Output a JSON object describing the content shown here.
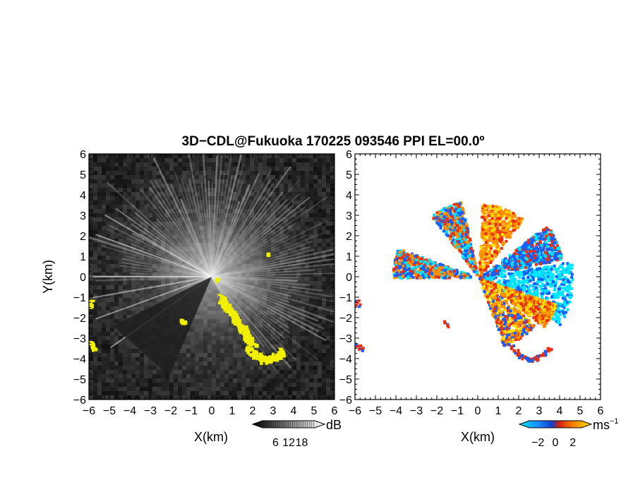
{
  "title": "3D−CDL@Fukuoka 170225 093546 PPI EL=00.0º",
  "chart_data": [
    {
      "type": "heatmap",
      "title": "3D−CDL@Fukuoka 170225 093546 PPI EL=00.0º",
      "quantity": "signal-to-noise ratio",
      "xlabel": "X(km)",
      "ylabel": "Y(km)",
      "xlim": [
        -6,
        6
      ],
      "ylim": [
        -6,
        6
      ],
      "xticks": [
        -6,
        -5,
        -4,
        -3,
        -2,
        -1,
        0,
        1,
        2,
        3,
        4,
        5,
        6
      ],
      "yticks": [
        -6,
        -5,
        -4,
        -3,
        -2,
        -1,
        0,
        1,
        2,
        3,
        4,
        5,
        6
      ],
      "xtick_labels": [
        "−6",
        "−5",
        "−4",
        "−3",
        "−2",
        "−1",
        "0",
        "1",
        "2",
        "3",
        "4",
        "5",
        "6"
      ],
      "ytick_labels": [
        "−6",
        "−5",
        "−4",
        "−3",
        "−2",
        "−1",
        "0",
        "1",
        "2",
        "3",
        "4",
        "5",
        "6"
      ],
      "colorbar": {
        "ticks": [
          6,
          12,
          18
        ],
        "tick_labels": [
          "6",
          "12",
          "18"
        ],
        "unit": "dB",
        "colormap": "grayscale"
      },
      "background_color": "#262626",
      "highlight_color": "#f0f000",
      "grid": false
    },
    {
      "type": "heatmap",
      "quantity": "radial velocity",
      "xlabel": "X(km)",
      "ylabel": "",
      "xlim": [
        -6,
        6
      ],
      "ylim": [
        -6,
        6
      ],
      "xticks": [
        -6,
        -5,
        -4,
        -3,
        -2,
        -1,
        0,
        1,
        2,
        3,
        4,
        5,
        6
      ],
      "yticks": [
        -6,
        -5,
        -4,
        -3,
        -2,
        -1,
        0,
        1,
        2,
        3,
        4,
        5,
        6
      ],
      "xtick_labels": [
        "−6",
        "−5",
        "−4",
        "−3",
        "−2",
        "−1",
        "0",
        "1",
        "2",
        "3",
        "4",
        "5",
        "6"
      ],
      "ytick_labels": [
        "−6",
        "−5",
        "−4",
        "−3",
        "−2",
        "−1",
        "0",
        "1",
        "2",
        "3",
        "4",
        "5",
        "6"
      ],
      "colorbar": {
        "ticks": [
          -2,
          0,
          2
        ],
        "tick_labels": [
          "−2",
          "0",
          "2"
        ],
        "unit": "ms",
        "unit_exponent": "−1",
        "colormap": "cyan-blue-red-orange-yellow"
      },
      "colors": {
        "cyan": "#00e5ff",
        "blue": "#1060ff",
        "red": "#e83010",
        "orange": "#ff9000",
        "yellow": "#ffe000"
      },
      "grid": false
    }
  ]
}
